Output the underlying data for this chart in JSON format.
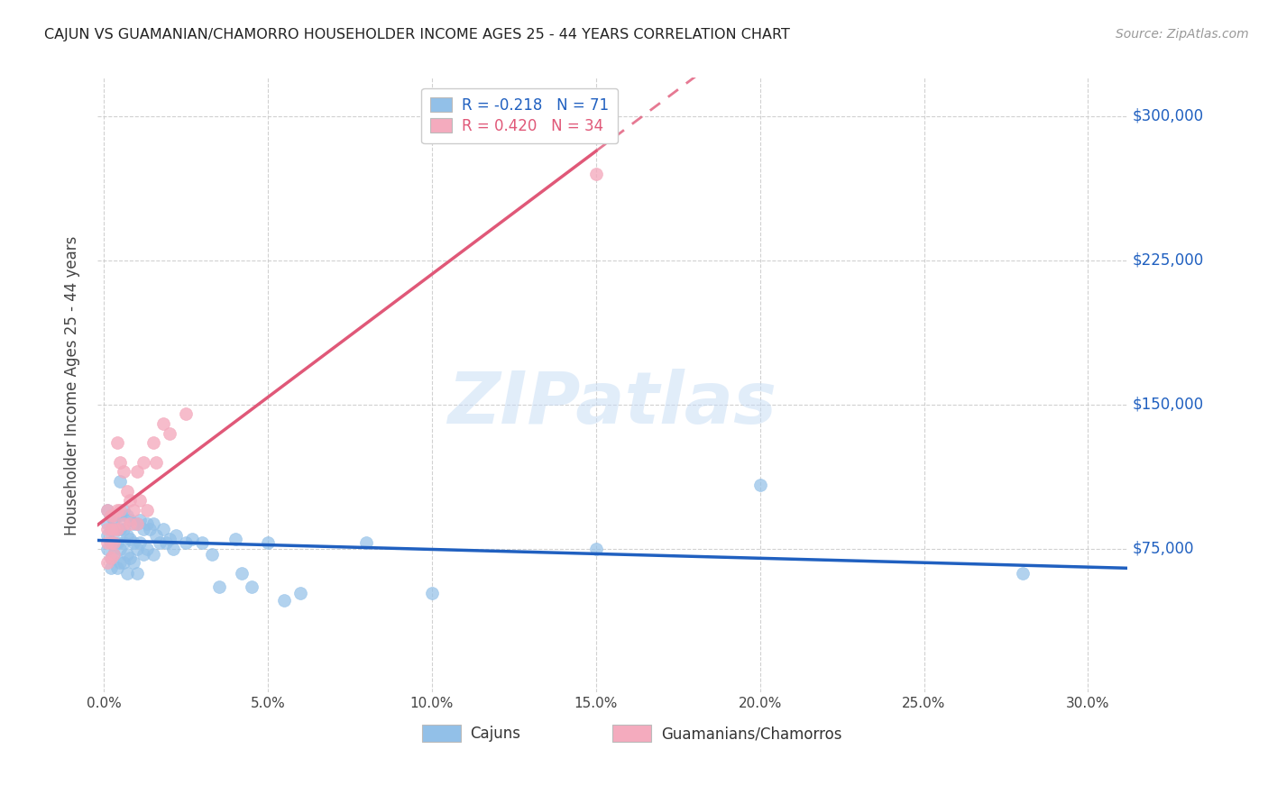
{
  "title": "CAJUN VS GUAMANIAN/CHAMORRO HOUSEHOLDER INCOME AGES 25 - 44 YEARS CORRELATION CHART",
  "source": "Source: ZipAtlas.com",
  "ylabel": "Householder Income Ages 25 - 44 years",
  "xlabel_ticks": [
    "0.0%",
    "5.0%",
    "10.0%",
    "15.0%",
    "20.0%",
    "25.0%",
    "30.0%"
  ],
  "xlabel_vals": [
    0.0,
    0.05,
    0.1,
    0.15,
    0.2,
    0.25,
    0.3
  ],
  "ytick_labels": [
    "$75,000",
    "$150,000",
    "$225,000",
    "$300,000"
  ],
  "ytick_vals": [
    75000,
    150000,
    225000,
    300000
  ],
  "xlim": [
    -0.002,
    0.312
  ],
  "ylim": [
    0,
    320000
  ],
  "watermark": "ZIPatlas",
  "legend_cajun_R": "-0.218",
  "legend_cajun_N": "71",
  "legend_guam_R": "0.420",
  "legend_guam_N": "34",
  "cajun_color": "#92C0E8",
  "guam_color": "#F4ABBE",
  "cajun_line_color": "#2060C0",
  "guam_line_color": "#E05878",
  "background_color": "#FFFFFF",
  "cajun_scatter": [
    [
      0.001,
      95000
    ],
    [
      0.001,
      88000
    ],
    [
      0.001,
      82000
    ],
    [
      0.001,
      75000
    ],
    [
      0.002,
      92000
    ],
    [
      0.002,
      85000
    ],
    [
      0.002,
      78000
    ],
    [
      0.002,
      70000
    ],
    [
      0.002,
      65000
    ],
    [
      0.003,
      90000
    ],
    [
      0.003,
      85000
    ],
    [
      0.003,
      78000
    ],
    [
      0.003,
      72000
    ],
    [
      0.004,
      92000
    ],
    [
      0.004,
      85000
    ],
    [
      0.004,
      78000
    ],
    [
      0.004,
      65000
    ],
    [
      0.005,
      110000
    ],
    [
      0.005,
      92000
    ],
    [
      0.005,
      85000
    ],
    [
      0.005,
      75000
    ],
    [
      0.005,
      68000
    ],
    [
      0.006,
      95000
    ],
    [
      0.006,
      85000
    ],
    [
      0.006,
      78000
    ],
    [
      0.006,
      68000
    ],
    [
      0.007,
      92000
    ],
    [
      0.007,
      82000
    ],
    [
      0.007,
      72000
    ],
    [
      0.007,
      62000
    ],
    [
      0.008,
      90000
    ],
    [
      0.008,
      80000
    ],
    [
      0.008,
      70000
    ],
    [
      0.009,
      88000
    ],
    [
      0.009,
      78000
    ],
    [
      0.009,
      68000
    ],
    [
      0.01,
      88000
    ],
    [
      0.01,
      75000
    ],
    [
      0.01,
      62000
    ],
    [
      0.011,
      90000
    ],
    [
      0.011,
      78000
    ],
    [
      0.012,
      85000
    ],
    [
      0.012,
      72000
    ],
    [
      0.013,
      88000
    ],
    [
      0.013,
      75000
    ],
    [
      0.014,
      85000
    ],
    [
      0.015,
      88000
    ],
    [
      0.015,
      72000
    ],
    [
      0.016,
      82000
    ],
    [
      0.017,
      78000
    ],
    [
      0.018,
      85000
    ],
    [
      0.019,
      78000
    ],
    [
      0.02,
      80000
    ],
    [
      0.021,
      75000
    ],
    [
      0.022,
      82000
    ],
    [
      0.025,
      78000
    ],
    [
      0.027,
      80000
    ],
    [
      0.03,
      78000
    ],
    [
      0.033,
      72000
    ],
    [
      0.035,
      55000
    ],
    [
      0.04,
      80000
    ],
    [
      0.042,
      62000
    ],
    [
      0.045,
      55000
    ],
    [
      0.05,
      78000
    ],
    [
      0.055,
      48000
    ],
    [
      0.06,
      52000
    ],
    [
      0.08,
      78000
    ],
    [
      0.1,
      52000
    ],
    [
      0.15,
      75000
    ],
    [
      0.2,
      108000
    ],
    [
      0.28,
      62000
    ]
  ],
  "guam_scatter": [
    [
      0.001,
      95000
    ],
    [
      0.001,
      85000
    ],
    [
      0.001,
      78000
    ],
    [
      0.001,
      68000
    ],
    [
      0.002,
      92000
    ],
    [
      0.002,
      85000
    ],
    [
      0.002,
      78000
    ],
    [
      0.002,
      70000
    ],
    [
      0.003,
      92000
    ],
    [
      0.003,
      85000
    ],
    [
      0.003,
      78000
    ],
    [
      0.003,
      72000
    ],
    [
      0.004,
      130000
    ],
    [
      0.004,
      95000
    ],
    [
      0.004,
      85000
    ],
    [
      0.005,
      120000
    ],
    [
      0.005,
      95000
    ],
    [
      0.006,
      115000
    ],
    [
      0.006,
      88000
    ],
    [
      0.007,
      105000
    ],
    [
      0.008,
      100000
    ],
    [
      0.008,
      88000
    ],
    [
      0.009,
      95000
    ],
    [
      0.01,
      115000
    ],
    [
      0.01,
      88000
    ],
    [
      0.011,
      100000
    ],
    [
      0.012,
      120000
    ],
    [
      0.013,
      95000
    ],
    [
      0.015,
      130000
    ],
    [
      0.016,
      120000
    ],
    [
      0.018,
      140000
    ],
    [
      0.02,
      135000
    ],
    [
      0.025,
      145000
    ],
    [
      0.15,
      270000
    ]
  ]
}
